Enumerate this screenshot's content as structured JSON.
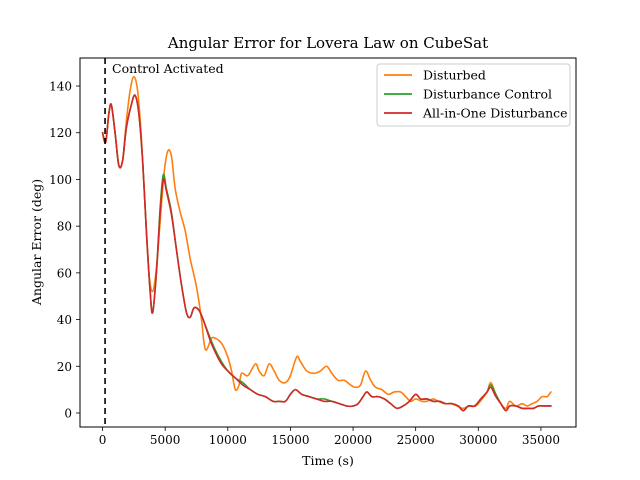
{
  "chart_data": {
    "type": "line",
    "title": "Angular Error for Lovera Law on CubeSat",
    "xlabel": "Time (s)",
    "ylabel": "Angular Error (deg)",
    "xlim": [
      -1800,
      37800
    ],
    "ylim": [
      -6,
      152
    ],
    "xticks": [
      0,
      5000,
      10000,
      15000,
      20000,
      25000,
      30000,
      35000
    ],
    "xtick_labels": [
      "0",
      "5000",
      "10000",
      "15000",
      "20000",
      "25000",
      "30000",
      "35000"
    ],
    "yticks": [
      0,
      20,
      40,
      60,
      80,
      100,
      120,
      140
    ],
    "ytick_labels": [
      "0",
      "20",
      "40",
      "60",
      "80",
      "100",
      "120",
      "140"
    ],
    "grid": false,
    "legend_position": "top-right",
    "annotation": {
      "text": "Control Activated",
      "x": 200,
      "line_style": "dashed",
      "line_color": "#000000"
    },
    "series": [
      {
        "name": "Disturbed",
        "color": "#ff7f0e",
        "points": [
          [
            0,
            120
          ],
          [
            250,
            116
          ],
          [
            500,
            128
          ],
          [
            700,
            132
          ],
          [
            1000,
            120
          ],
          [
            1300,
            106
          ],
          [
            1600,
            108
          ],
          [
            1900,
            125
          ],
          [
            2200,
            138
          ],
          [
            2500,
            144
          ],
          [
            2800,
            138
          ],
          [
            3100,
            118
          ],
          [
            3400,
            88
          ],
          [
            3700,
            60
          ],
          [
            4000,
            52
          ],
          [
            4300,
            62
          ],
          [
            4600,
            82
          ],
          [
            4900,
            102
          ],
          [
            5200,
            112
          ],
          [
            5500,
            110
          ],
          [
            5800,
            96
          ],
          [
            6200,
            86
          ],
          [
            6600,
            78
          ],
          [
            7000,
            66
          ],
          [
            7500,
            54
          ],
          [
            7900,
            40
          ],
          [
            8100,
            30
          ],
          [
            8300,
            27
          ],
          [
            8700,
            32
          ],
          [
            9000,
            32
          ],
          [
            9300,
            31
          ],
          [
            9600,
            29
          ],
          [
            10000,
            24
          ],
          [
            10300,
            18
          ],
          [
            10600,
            10
          ],
          [
            10900,
            12
          ],
          [
            11100,
            17
          ],
          [
            11600,
            16
          ],
          [
            12200,
            21
          ],
          [
            12500,
            18
          ],
          [
            12900,
            16
          ],
          [
            13300,
            21
          ],
          [
            13700,
            18
          ],
          [
            14100,
            14
          ],
          [
            14600,
            13
          ],
          [
            15000,
            16
          ],
          [
            15500,
            24
          ],
          [
            15800,
            22
          ],
          [
            16300,
            18
          ],
          [
            16900,
            17
          ],
          [
            17400,
            18
          ],
          [
            17900,
            20
          ],
          [
            18300,
            17
          ],
          [
            18800,
            14
          ],
          [
            19300,
            14
          ],
          [
            19800,
            12
          ],
          [
            20200,
            11
          ],
          [
            20600,
            12
          ],
          [
            21000,
            18
          ],
          [
            21400,
            14
          ],
          [
            21800,
            11
          ],
          [
            22300,
            10
          ],
          [
            22800,
            8
          ],
          [
            23300,
            9
          ],
          [
            23800,
            9
          ],
          [
            24200,
            7
          ],
          [
            24600,
            5
          ],
          [
            25000,
            6
          ],
          [
            25500,
            5
          ],
          [
            25900,
            5
          ],
          [
            26400,
            6
          ],
          [
            26800,
            5
          ],
          [
            27300,
            4
          ],
          [
            27800,
            4
          ],
          [
            28300,
            3
          ],
          [
            28800,
            2
          ],
          [
            29300,
            3
          ],
          [
            29800,
            3
          ],
          [
            30300,
            6
          ],
          [
            30700,
            9
          ],
          [
            31000,
            13
          ],
          [
            31400,
            8
          ],
          [
            31800,
            4
          ],
          [
            32200,
            2
          ],
          [
            32500,
            5
          ],
          [
            33000,
            3
          ],
          [
            33500,
            4
          ],
          [
            33900,
            3
          ],
          [
            34300,
            4
          ],
          [
            34700,
            5
          ],
          [
            35100,
            7
          ],
          [
            35500,
            7
          ],
          [
            35800,
            9
          ]
        ]
      },
      {
        "name": "Disturbance Control",
        "color": "#2ca02c",
        "points": [
          [
            0,
            120
          ],
          [
            250,
            116
          ],
          [
            500,
            128
          ],
          [
            700,
            132
          ],
          [
            1000,
            120
          ],
          [
            1300,
            106
          ],
          [
            1600,
            108
          ],
          [
            1900,
            122
          ],
          [
            2300,
            132
          ],
          [
            2600,
            136
          ],
          [
            2900,
            128
          ],
          [
            3200,
            108
          ],
          [
            3500,
            78
          ],
          [
            3800,
            52
          ],
          [
            4000,
            43
          ],
          [
            4300,
            60
          ],
          [
            4600,
            88
          ],
          [
            4850,
            102
          ],
          [
            5100,
            96
          ],
          [
            5500,
            86
          ],
          [
            5900,
            70
          ],
          [
            6300,
            55
          ],
          [
            6700,
            43
          ],
          [
            7000,
            41
          ],
          [
            7300,
            45
          ],
          [
            7700,
            44
          ],
          [
            8100,
            39
          ],
          [
            8600,
            32
          ],
          [
            9000,
            27
          ],
          [
            9500,
            22
          ],
          [
            10000,
            18
          ],
          [
            10600,
            15
          ],
          [
            11200,
            13
          ],
          [
            11800,
            10
          ],
          [
            12400,
            8
          ],
          [
            13000,
            7
          ],
          [
            13600,
            5
          ],
          [
            14100,
            5
          ],
          [
            14600,
            5
          ],
          [
            15000,
            8
          ],
          [
            15400,
            10
          ],
          [
            15900,
            8
          ],
          [
            16500,
            7
          ],
          [
            17100,
            6
          ],
          [
            17700,
            6
          ],
          [
            18300,
            5
          ],
          [
            18900,
            4
          ],
          [
            19500,
            3
          ],
          [
            20000,
            3
          ],
          [
            20400,
            4
          ],
          [
            20800,
            7
          ],
          [
            21100,
            9
          ],
          [
            21500,
            7
          ],
          [
            22000,
            7
          ],
          [
            22500,
            6
          ],
          [
            23000,
            4
          ],
          [
            23500,
            2
          ],
          [
            24000,
            3
          ],
          [
            24500,
            5
          ],
          [
            25000,
            8
          ],
          [
            25400,
            6
          ],
          [
            25900,
            6
          ],
          [
            26400,
            5
          ],
          [
            26900,
            5
          ],
          [
            27400,
            4
          ],
          [
            27900,
            4
          ],
          [
            28400,
            3
          ],
          [
            28800,
            1
          ],
          [
            29200,
            3
          ],
          [
            29700,
            3
          ],
          [
            30200,
            6
          ],
          [
            30700,
            9
          ],
          [
            31000,
            12
          ],
          [
            31400,
            8
          ],
          [
            31800,
            4
          ],
          [
            32200,
            1
          ],
          [
            32500,
            3
          ],
          [
            33000,
            3
          ],
          [
            33500,
            2
          ],
          [
            34000,
            2
          ],
          [
            34400,
            2
          ],
          [
            34800,
            3
          ],
          [
            35200,
            3
          ],
          [
            35800,
            3
          ]
        ]
      },
      {
        "name": "All-in-One Disturbance",
        "color": "#d62728",
        "points": [
          [
            0,
            120
          ],
          [
            250,
            116
          ],
          [
            500,
            128
          ],
          [
            700,
            132
          ],
          [
            1000,
            120
          ],
          [
            1300,
            106
          ],
          [
            1600,
            108
          ],
          [
            1900,
            122
          ],
          [
            2300,
            132
          ],
          [
            2600,
            136
          ],
          [
            2900,
            128
          ],
          [
            3200,
            108
          ],
          [
            3500,
            78
          ],
          [
            3800,
            52
          ],
          [
            4000,
            43
          ],
          [
            4300,
            60
          ],
          [
            4600,
            86
          ],
          [
            4850,
            100
          ],
          [
            5100,
            95
          ],
          [
            5500,
            85
          ],
          [
            5900,
            70
          ],
          [
            6300,
            55
          ],
          [
            6700,
            43
          ],
          [
            7000,
            41
          ],
          [
            7300,
            45
          ],
          [
            7700,
            44
          ],
          [
            8100,
            39
          ],
          [
            8600,
            31
          ],
          [
            9000,
            26
          ],
          [
            9500,
            21
          ],
          [
            10000,
            18
          ],
          [
            10600,
            15
          ],
          [
            11200,
            12
          ],
          [
            11800,
            10
          ],
          [
            12400,
            8
          ],
          [
            13000,
            7
          ],
          [
            13600,
            5
          ],
          [
            14100,
            5
          ],
          [
            14600,
            5
          ],
          [
            15000,
            8
          ],
          [
            15400,
            10
          ],
          [
            15900,
            8
          ],
          [
            16500,
            7
          ],
          [
            17100,
            6
          ],
          [
            17700,
            5
          ],
          [
            18300,
            5
          ],
          [
            18900,
            4
          ],
          [
            19500,
            3
          ],
          [
            20000,
            3
          ],
          [
            20400,
            4
          ],
          [
            20800,
            7
          ],
          [
            21100,
            9
          ],
          [
            21500,
            7
          ],
          [
            22000,
            7
          ],
          [
            22500,
            6
          ],
          [
            23000,
            4
          ],
          [
            23500,
            2
          ],
          [
            24000,
            3
          ],
          [
            24500,
            5
          ],
          [
            25000,
            8
          ],
          [
            25400,
            6
          ],
          [
            25900,
            6
          ],
          [
            26400,
            5
          ],
          [
            26900,
            5
          ],
          [
            27400,
            4
          ],
          [
            27900,
            4
          ],
          [
            28400,
            3
          ],
          [
            28800,
            1
          ],
          [
            29200,
            3
          ],
          [
            29700,
            3
          ],
          [
            30200,
            6
          ],
          [
            30700,
            9
          ],
          [
            31000,
            11
          ],
          [
            31400,
            7
          ],
          [
            31800,
            4
          ],
          [
            32200,
            1
          ],
          [
            32500,
            3
          ],
          [
            33000,
            3
          ],
          [
            33500,
            2
          ],
          [
            34000,
            2
          ],
          [
            34400,
            2
          ],
          [
            34800,
            3
          ],
          [
            35200,
            3
          ],
          [
            35800,
            3
          ]
        ]
      }
    ]
  }
}
